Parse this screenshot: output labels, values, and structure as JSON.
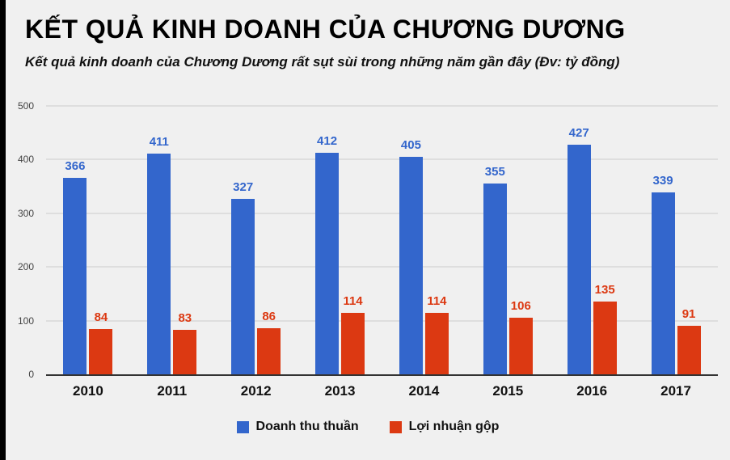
{
  "chart_data": {
    "type": "bar",
    "title": "KẾT QUẢ KINH DOANH CỦA CHƯƠNG DƯƠNG",
    "subtitle": "Kết quả kinh doanh của Chương Dương rất sụt sùi trong những năm gần đây (Đv: tỷ đồng)",
    "unit": "tỷ đồng",
    "categories": [
      "2010",
      "2011",
      "2012",
      "2013",
      "2014",
      "2015",
      "2016",
      "2017"
    ],
    "series": [
      {
        "key": "revenue",
        "name": "Doanh thu thuần",
        "color": "#3366cc",
        "values": [
          366,
          411,
          327,
          412,
          405,
          355,
          427,
          339
        ]
      },
      {
        "key": "profit",
        "name": "Lợi nhuận gộp",
        "color": "#dc3912",
        "values": [
          84,
          83,
          86,
          114,
          114,
          106,
          135,
          91
        ]
      }
    ],
    "ylim": [
      0,
      500
    ],
    "yticks": [
      0,
      100,
      200,
      300,
      400,
      500
    ],
    "grid": true,
    "legend_position": "bottom"
  },
  "colors": {
    "background": "#f0f0f0",
    "grid": "#cccccc",
    "axis": "#333333",
    "left_edge_bar": "#000000"
  }
}
